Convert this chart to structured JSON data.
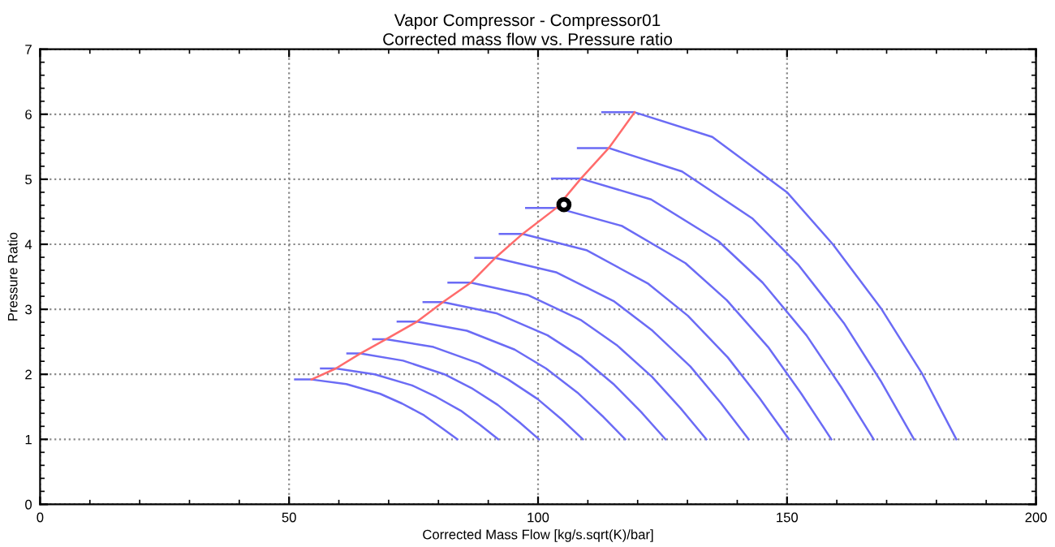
{
  "chart_data": {
    "type": "line",
    "title": "Vapor Compressor - Compressor01",
    "subtitle": "Corrected mass flow vs. Pressure ratio",
    "xlabel": "Corrected Mass Flow [kg/s.sqrt(K)/bar]",
    "ylabel": "Pressure Ratio",
    "xlim": [
      0,
      200
    ],
    "ylim": [
      0,
      7
    ],
    "xticks": [
      0,
      50,
      100,
      150,
      200
    ],
    "yticks": [
      0,
      1,
      2,
      3,
      4,
      5,
      6,
      7
    ],
    "grid": true,
    "legend": false,
    "marker": "none",
    "line_style": "solid",
    "series": [
      {
        "color": "#6b6bf5",
        "x": [
          51.2,
          54.5,
          61.5,
          68.3,
          72.7,
          77.1,
          80.6,
          83.8
        ],
        "values": [
          1.92,
          1.92,
          1.85,
          1.7,
          1.55,
          1.37,
          1.18,
          1.0
        ]
      },
      {
        "color": "#6b6bf5",
        "x": [
          56.4,
          59.4,
          67.2,
          74.7,
          79.6,
          84.5,
          88.4,
          92.0
        ],
        "values": [
          2.09,
          2.09,
          2.0,
          1.83,
          1.65,
          1.44,
          1.22,
          1.0
        ]
      },
      {
        "color": "#6b6bf5",
        "x": [
          61.7,
          64.3,
          72.9,
          81.2,
          86.6,
          91.9,
          96.3,
          100.2
        ],
        "values": [
          2.32,
          2.32,
          2.21,
          2.0,
          1.79,
          1.53,
          1.26,
          1.0
        ]
      },
      {
        "color": "#6b6bf5",
        "x": [
          66.9,
          69.5,
          79.0,
          88.1,
          94.0,
          99.9,
          104.7,
          109.0
        ],
        "values": [
          2.54,
          2.54,
          2.42,
          2.17,
          1.92,
          1.62,
          1.31,
          1.0
        ]
      },
      {
        "color": "#6b6bf5",
        "x": [
          71.8,
          75.7,
          85.7,
          95.3,
          101.6,
          107.9,
          112.9,
          117.5
        ],
        "values": [
          2.81,
          2.81,
          2.67,
          2.38,
          2.09,
          1.72,
          1.36,
          1.0
        ]
      },
      {
        "color": "#6b6bf5",
        "x": [
          77.0,
          80.9,
          91.6,
          101.9,
          108.6,
          115.3,
          120.7,
          125.6
        ],
        "values": [
          3.11,
          3.11,
          2.94,
          2.6,
          2.27,
          1.84,
          1.42,
          1.0
        ]
      },
      {
        "color": "#6b6bf5",
        "x": [
          82.0,
          86.5,
          97.9,
          108.7,
          115.8,
          122.9,
          128.6,
          133.8
        ],
        "values": [
          3.41,
          3.41,
          3.22,
          2.83,
          2.45,
          1.96,
          1.48,
          1.0
        ]
      },
      {
        "color": "#6b6bf5",
        "x": [
          87.4,
          91.4,
          103.6,
          115.3,
          123.0,
          130.6,
          136.7,
          142.3
        ],
        "values": [
          3.79,
          3.79,
          3.57,
          3.12,
          2.67,
          2.12,
          1.56,
          1.0
        ]
      },
      {
        "color": "#6b6bf5",
        "x": [
          92.3,
          96.9,
          109.7,
          122.0,
          130.1,
          138.1,
          144.5,
          150.4
        ],
        "values": [
          4.16,
          4.16,
          3.91,
          3.4,
          2.9,
          2.26,
          1.63,
          1.0
        ]
      },
      {
        "color": "#6b6bf5",
        "x": [
          97.6,
          103.7,
          116.9,
          129.6,
          137.9,
          146.2,
          152.8,
          158.9
        ],
        "values": [
          4.56,
          4.56,
          4.28,
          3.71,
          3.14,
          2.42,
          1.71,
          1.0
        ]
      },
      {
        "color": "#6b6bf5",
        "x": [
          102.8,
          108.6,
          122.7,
          136.2,
          145.1,
          153.9,
          160.9,
          167.4
        ],
        "values": [
          5.01,
          5.01,
          4.69,
          4.05,
          3.41,
          2.6,
          1.8,
          1.0
        ]
      },
      {
        "color": "#6b6bf5",
        "x": [
          108.0,
          114.2,
          128.9,
          143.0,
          152.2,
          161.4,
          168.8,
          175.5
        ],
        "values": [
          5.48,
          5.48,
          5.12,
          4.4,
          3.69,
          2.79,
          1.9,
          1.0
        ]
      },
      {
        "color": "#6b6bf5",
        "x": [
          112.9,
          119.4,
          135.0,
          150.0,
          159.2,
          169.0,
          177.2,
          184.0
        ],
        "values": [
          6.03,
          6.03,
          5.65,
          4.8,
          4.0,
          3.0,
          2.0,
          1.0
        ]
      },
      {
        "color": "#ff6b6b",
        "x": [
          54.5,
          59.4,
          64.3,
          69.5,
          75.7,
          80.9,
          86.5,
          91.4,
          96.9,
          103.7,
          108.6,
          114.2,
          119.4
        ],
        "values": [
          1.92,
          2.09,
          2.32,
          2.54,
          2.81,
          3.11,
          3.41,
          3.79,
          4.16,
          4.56,
          5.01,
          5.48,
          6.03
        ]
      },
      {
        "type": "scatter",
        "marker": "circle",
        "color": "#000000",
        "x": [
          105.2
        ],
        "values": [
          4.61
        ]
      }
    ]
  }
}
